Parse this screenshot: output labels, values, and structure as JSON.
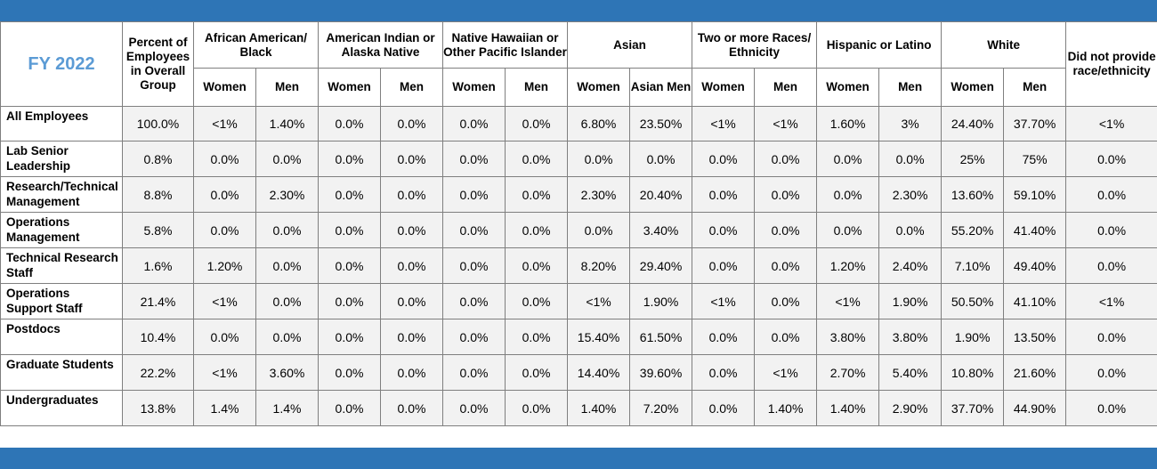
{
  "title": "FY 2022",
  "headers": {
    "percent": "Percent of Employees in Overall Group",
    "groups": [
      {
        "label": "African American/ Black",
        "sub": [
          "Women",
          "Men"
        ]
      },
      {
        "label": "American Indian or Alaska Native",
        "sub": [
          "Women",
          "Men"
        ]
      },
      {
        "label": "Native Hawaiian or Other Pacific Islander",
        "sub": [
          "Women",
          "Men"
        ]
      },
      {
        "label": "Asian",
        "sub": [
          "Women",
          "Asian Men"
        ]
      },
      {
        "label": "Two or more Races/ Ethnicity",
        "sub": [
          "Women",
          "Men"
        ]
      },
      {
        "label": "Hispanic or Latino",
        "sub": [
          "Women",
          "Men"
        ]
      },
      {
        "label": "White",
        "sub": [
          "Women",
          "Men"
        ]
      }
    ],
    "no_response": "Did not provide race/ethnicity"
  },
  "rows": [
    {
      "label": "All Employees",
      "values": [
        "100.0%",
        "<1%",
        "1.40%",
        "0.0%",
        "0.0%",
        "0.0%",
        "0.0%",
        "6.80%",
        "23.50%",
        "<1%",
        "<1%",
        "1.60%",
        "3%",
        "24.40%",
        "37.70%",
        "<1%"
      ]
    },
    {
      "label": "Lab Senior Leadership",
      "values": [
        "0.8%",
        "0.0%",
        "0.0%",
        "0.0%",
        "0.0%",
        "0.0%",
        "0.0%",
        "0.0%",
        "0.0%",
        "0.0%",
        "0.0%",
        "0.0%",
        "0.0%",
        "25%",
        "75%",
        "0.0%"
      ]
    },
    {
      "label": "Research/Technical Management",
      "values": [
        "8.8%",
        "0.0%",
        "2.30%",
        "0.0%",
        "0.0%",
        "0.0%",
        "0.0%",
        "2.30%",
        "20.40%",
        "0.0%",
        "0.0%",
        "0.0%",
        "2.30%",
        "13.60%",
        "59.10%",
        "0.0%"
      ]
    },
    {
      "label": "Operations Management",
      "values": [
        "5.8%",
        "0.0%",
        "0.0%",
        "0.0%",
        "0.0%",
        "0.0%",
        "0.0%",
        "0.0%",
        "3.40%",
        "0.0%",
        "0.0%",
        "0.0%",
        "0.0%",
        "55.20%",
        "41.40%",
        "0.0%"
      ]
    },
    {
      "label": "Technical Research Staff",
      "values": [
        "1.6%",
        "1.20%",
        "0.0%",
        "0.0%",
        "0.0%",
        "0.0%",
        "0.0%",
        "8.20%",
        "29.40%",
        "0.0%",
        "0.0%",
        "1.20%",
        "2.40%",
        "7.10%",
        "49.40%",
        "0.0%"
      ]
    },
    {
      "label": "Operations Support Staff",
      "values": [
        "21.4%",
        "<1%",
        "0.0%",
        "0.0%",
        "0.0%",
        "0.0%",
        "0.0%",
        "<1%",
        "1.90%",
        "<1%",
        "0.0%",
        "<1%",
        "1.90%",
        "50.50%",
        "41.10%",
        "<1%"
      ]
    },
    {
      "label": "Postdocs",
      "values": [
        "10.4%",
        "0.0%",
        "0.0%",
        "0.0%",
        "0.0%",
        "0.0%",
        "0.0%",
        "15.40%",
        "61.50%",
        "0.0%",
        "0.0%",
        "3.80%",
        "3.80%",
        "1.90%",
        "13.50%",
        "0.0%"
      ]
    },
    {
      "label": "Graduate Students",
      "values": [
        "22.2%",
        "<1%",
        "3.60%",
        "0.0%",
        "0.0%",
        "0.0%",
        "0.0%",
        "14.40%",
        "39.60%",
        "0.0%",
        "<1%",
        "2.70%",
        "5.40%",
        "10.80%",
        "21.60%",
        "0.0%"
      ]
    },
    {
      "label": "Undergraduates",
      "values": [
        "13.8%",
        "1.4%",
        "1.4%",
        "0.0%",
        "0.0%",
        "0.0%",
        "0.0%",
        "1.40%",
        "7.20%",
        "0.0%",
        "1.40%",
        "1.40%",
        "2.90%",
        "37.70%",
        "44.90%",
        "0.0%"
      ]
    }
  ],
  "colors": {
    "band": "#2e75b6",
    "title": "#5b9bd5",
    "cell_bg": "#f2f2f2"
  }
}
